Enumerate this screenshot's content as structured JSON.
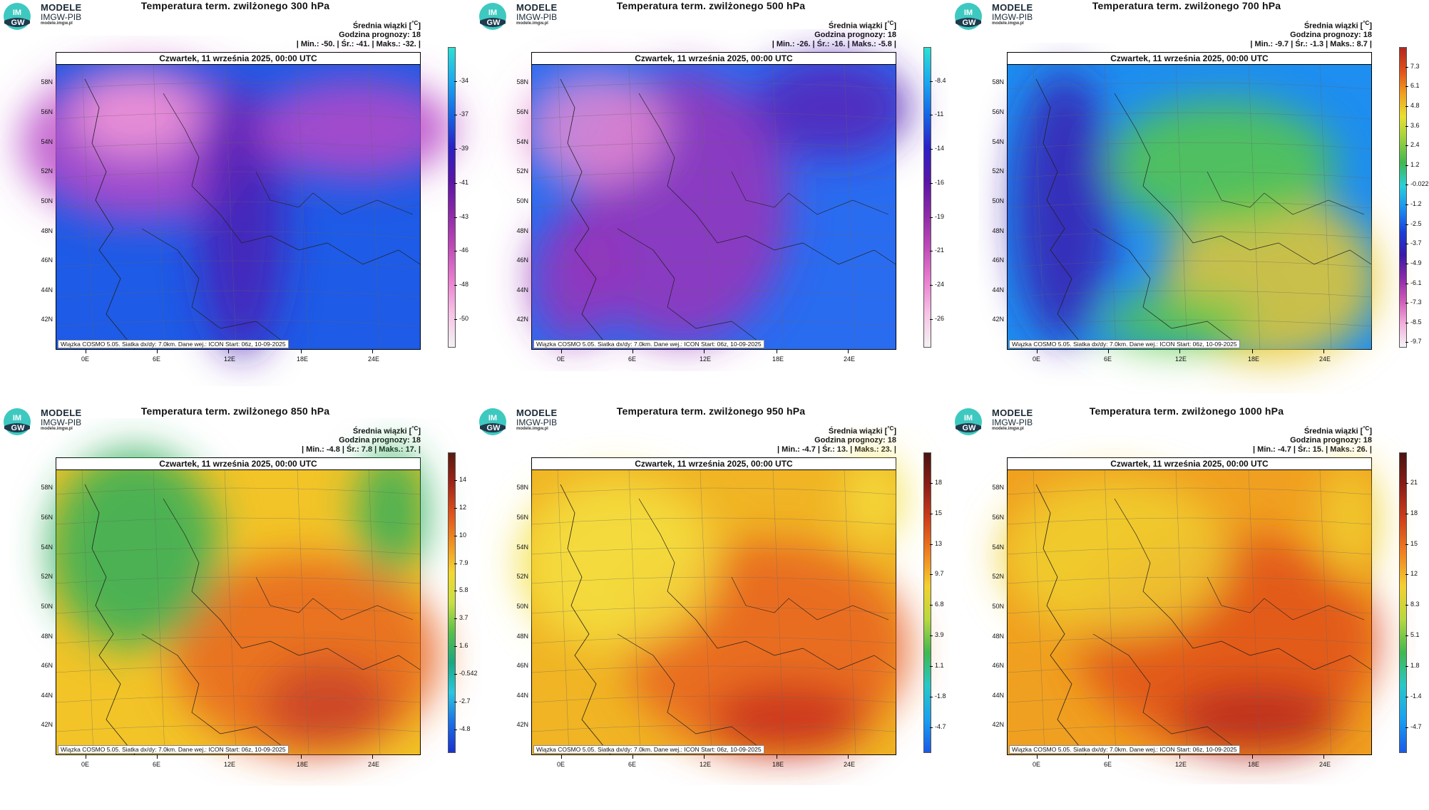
{
  "brand": {
    "line1": "MODELE",
    "line2": "IMGW-PIB",
    "line3": "modele.imgw.pl",
    "logo_text": "IM GW"
  },
  "common": {
    "info_title_prefix": "Średnia wiązki [",
    "info_title_unit": "°C",
    "info_title_suffix": "]",
    "forecast_hour_label": "Godzina prognozy: 18",
    "date_label": "Czwartek, 11 września 2025, 00:00 UTC",
    "footer": "Wiązka COSMO 5.05. Siatka dx/dy: 7.0km. Dane wej.: ICON Start: 06z, 10-09-2025",
    "lat_labels": [
      "58N",
      "56N",
      "54N",
      "52N",
      "50N",
      "48N",
      "46N",
      "44N",
      "42N"
    ],
    "lon_labels": [
      "0E",
      "6E",
      "12E",
      "18E",
      "24E"
    ]
  },
  "panels": [
    {
      "title": "Temperatura term. zwilżonego 300 hPa",
      "stats": "| Min.:   -50. | Śr.:   -41. | Maks.:   -32. |",
      "cbar_labels": [
        "-34",
        "-37",
        "-39",
        "-41",
        "-43",
        "-46",
        "-48",
        "-50"
      ],
      "cbar_colors": [
        "#2de0d4",
        "#1aa9f0",
        "#1467e8",
        "#2a20c8",
        "#5a14a8",
        "#8d2aa8",
        "#c04ab8",
        "#ea7fd0",
        "#f7c4e6",
        "#f2f2f2"
      ],
      "field_colors": {
        "base": "#1e5be6",
        "a": "#b748c8",
        "b": "#f39ad8",
        "c": "#4b1fb4"
      }
    },
    {
      "title": "Temperatura term. zwilżonego 500 hPa",
      "stats": "| Min.:   -26. | Śr.:   -16. | Maks.:   -5.8 |",
      "cbar_labels": [
        "-8.4",
        "-11",
        "-14",
        "-16",
        "-19",
        "-21",
        "-24",
        "-26"
      ],
      "cbar_colors": [
        "#2de0d4",
        "#1aa9f0",
        "#1467e8",
        "#2a20c8",
        "#5a14a8",
        "#8d2aa8",
        "#c04ab8",
        "#ea7fd0",
        "#f7c4e6",
        "#f2f2f2"
      ],
      "field_colors": {
        "base": "#2a6cf0",
        "a": "#9a32b8",
        "b": "#e38ad2",
        "c": "#5525b8"
      }
    },
    {
      "title": "Temperatura term. zwilżonego 700 hPa",
      "stats": "| Min.:   -9.7 | Śr.:   -1.3 | Maks.:   8.7 |",
      "cbar_labels": [
        "7.3",
        "6.1",
        "4.8",
        "3.6",
        "2.4",
        "1.2",
        "-0.022",
        "-1.2",
        "-2.5",
        "-3.7",
        "-4.9",
        "-6.1",
        "-7.3",
        "-8.5",
        "-9.7"
      ],
      "cbar_colors": [
        "#b3261e",
        "#e0501a",
        "#f0a020",
        "#e8e030",
        "#9ad040",
        "#3fb850",
        "#28d0d8",
        "#1a8ef0",
        "#1a40d8",
        "#3a1aa8",
        "#8a2aa8",
        "#d05ab8",
        "#f2b0dc",
        "#f4f4f4"
      ],
      "field_colors": {
        "base": "#1e8ef0",
        "a": "#e8c830",
        "b": "#3a1fb0",
        "c": "#58c848"
      }
    },
    {
      "title": "Temperatura term. zwilżonego 850 hPa",
      "stats": "| Min.:   -4.8 | Śr.:   7.8 | Maks.:   17. |",
      "cbar_labels": [
        "14",
        "12",
        "10",
        "7.9",
        "5.8",
        "3.7",
        "1.6",
        "-0.542",
        "-2.7",
        "-4.8"
      ],
      "cbar_colors": [
        "#5a1a10",
        "#a02418",
        "#e0501a",
        "#f09020",
        "#f4d830",
        "#c8e040",
        "#58c048",
        "#18a880",
        "#28c8e0",
        "#1a70e8",
        "#1a30d0"
      ],
      "field_colors": {
        "base": "#f2c428",
        "a": "#e8641c",
        "b": "#2fae5a",
        "c": "#c8422a"
      }
    },
    {
      "title": "Temperatura term. zwilżonego 950 hPa",
      "stats": "| Min.:   -4.7 | Śr.:   13. | Maks.:   23. |",
      "cbar_labels": [
        "18",
        "15",
        "13",
        "9.7",
        "6.8",
        "3.9",
        "1.1",
        "-1.8",
        "-4.7"
      ],
      "cbar_colors": [
        "#4a1410",
        "#8e1e16",
        "#d0401a",
        "#f08020",
        "#f4d030",
        "#b8d840",
        "#40b850",
        "#28c8c8",
        "#1aa0f0",
        "#1a5ae8"
      ],
      "field_colors": {
        "base": "#f0b424",
        "a": "#e8601c",
        "b": "#f4e040",
        "c": "#c8301c"
      }
    },
    {
      "title": "Temperatura term. zwilżonego 1000 hPa",
      "stats": "| Min.:   -4.7 | Śr.:   15. | Maks.:   26. |",
      "cbar_labels": [
        "21",
        "18",
        "15",
        "12",
        "8.3",
        "5.1",
        "1.8",
        "-1.4",
        "-4.7"
      ],
      "cbar_colors": [
        "#4a1410",
        "#8e1e16",
        "#d0401a",
        "#f08020",
        "#f4d030",
        "#b8d840",
        "#40b850",
        "#28c8c8",
        "#1aa0f0",
        "#1a5ae8"
      ],
      "field_colors": {
        "base": "#f0a020",
        "a": "#e0501a",
        "b": "#f0d030",
        "c": "#b8281a"
      }
    }
  ]
}
